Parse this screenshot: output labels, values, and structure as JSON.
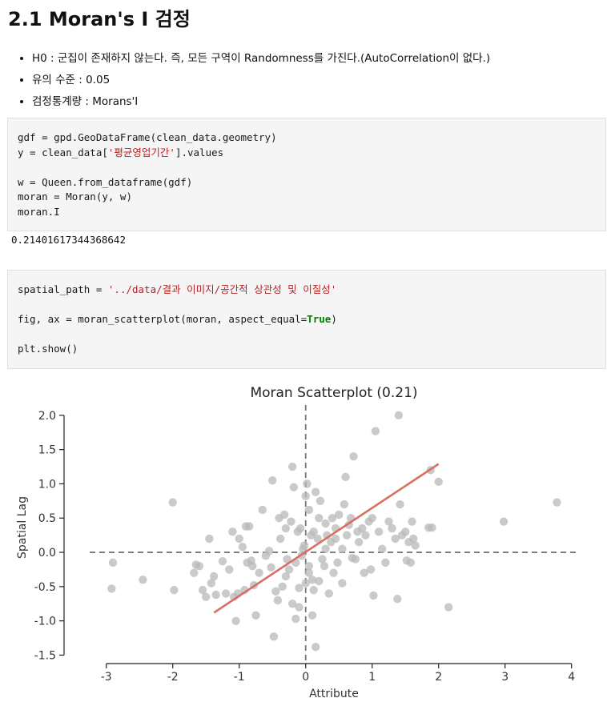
{
  "heading": "2.1 Moran's I 검정",
  "bullets": [
    "H0 : 군집이 존재하지 않는다. 즉, 모든 구역이 Randomness를 가진다.(AutoCorrelation이 없다.)",
    "유의 수준 : 0.05",
    "검정통계량 : Morans'I"
  ],
  "cell1": {
    "l1_a": "gdf = gpd.GeoDataFrame(clean_data.geometry)",
    "l2_a": "y = clean_data[",
    "l2_str": "'평균영업기간'",
    "l2_b": "].values",
    "l4_a": "w = Queen.from_dataframe(gdf)",
    "l5_a": "moran = Moran(y, w)",
    "l6_a": "moran.I"
  },
  "output1": "0.21401617344368642",
  "cell2": {
    "l1_a": "spatial_path = ",
    "l1_str": "'../data/결과 이미지/공간적 상관성 및 이질성'",
    "l3_a": "fig, ax = moran_scatterplot(moran, aspect_equal=",
    "l3_kw": "True",
    "l3_b": ")",
    "l5_a": "plt.show()"
  },
  "chart_data": {
    "type": "scatter",
    "title": "Moran Scatterplot (0.21)",
    "xlabel": "Attribute",
    "ylabel": "Spatial Lag",
    "xlim": [
      -3.25,
      4.1
    ],
    "ylim": [
      -1.6,
      2.15
    ],
    "xticks": [
      -3,
      -2,
      -1,
      0,
      1,
      2,
      3,
      4
    ],
    "yticks": [
      -1.5,
      -1.0,
      -0.5,
      0.0,
      0.5,
      1.0,
      1.5,
      2.0
    ],
    "ytick_labels": [
      "-1.5",
      "-1.0",
      "-0.5",
      "0.0",
      "0.5",
      "1.0",
      "1.5",
      "2.0"
    ],
    "grid": false,
    "point_color": "#b8b8b8",
    "fit_color": "#d6705f",
    "refline_color": "#777777",
    "fit_line": [
      [
        -1.38,
        -0.88
      ],
      [
        2.0,
        1.29
      ]
    ],
    "points": [
      [
        -2.9,
        -0.15
      ],
      [
        -2.92,
        -0.53
      ],
      [
        -2.45,
        -0.4
      ],
      [
        -2.0,
        0.73
      ],
      [
        -1.98,
        -0.55
      ],
      [
        -1.65,
        -0.18
      ],
      [
        -1.68,
        -0.3
      ],
      [
        -1.6,
        -0.2
      ],
      [
        -1.55,
        -0.55
      ],
      [
        -1.5,
        -0.65
      ],
      [
        -1.45,
        0.2
      ],
      [
        -1.42,
        -0.45
      ],
      [
        -1.38,
        -0.35
      ],
      [
        -1.35,
        -0.62
      ],
      [
        -1.25,
        -0.13
      ],
      [
        -1.2,
        -0.6
      ],
      [
        -1.15,
        -0.25
      ],
      [
        -1.1,
        0.3
      ],
      [
        -1.08,
        -0.65
      ],
      [
        -1.05,
        -1.0
      ],
      [
        -1.02,
        -0.6
      ],
      [
        -1.0,
        0.2
      ],
      [
        -0.95,
        0.08
      ],
      [
        -0.92,
        -0.55
      ],
      [
        -0.9,
        0.38
      ],
      [
        -0.88,
        -0.15
      ],
      [
        -0.85,
        0.38
      ],
      [
        -0.82,
        -0.12
      ],
      [
        -0.8,
        -0.2
      ],
      [
        -0.78,
        -0.48
      ],
      [
        -0.75,
        -0.92
      ],
      [
        -0.7,
        -0.3
      ],
      [
        -0.65,
        0.62
      ],
      [
        -0.6,
        -0.05
      ],
      [
        -0.55,
        0.02
      ],
      [
        -0.52,
        -0.22
      ],
      [
        -0.5,
        1.05
      ],
      [
        -0.48,
        -1.23
      ],
      [
        -0.45,
        -0.57
      ],
      [
        -0.42,
        -0.7
      ],
      [
        -0.4,
        0.5
      ],
      [
        -0.38,
        0.2
      ],
      [
        -0.35,
        -0.5
      ],
      [
        -0.32,
        0.55
      ],
      [
        -0.3,
        0.35
      ],
      [
        -0.28,
        -0.1
      ],
      [
        -0.25,
        -0.25
      ],
      [
        -0.22,
        0.45
      ],
      [
        -0.2,
        1.25
      ],
      [
        -0.18,
        0.95
      ],
      [
        -0.15,
        -0.15
      ],
      [
        -0.12,
        0.3
      ],
      [
        -0.1,
        -0.52
      ],
      [
        -0.08,
        0.35
      ],
      [
        -0.06,
        -0.05
      ],
      [
        -0.04,
        0.05
      ],
      [
        -0.02,
        0.1
      ],
      [
        0.0,
        0.82
      ],
      [
        0.02,
        1.0
      ],
      [
        0.05,
        0.62
      ],
      [
        0.05,
        -0.3
      ],
      [
        0.08,
        0.25
      ],
      [
        0.1,
        -0.4
      ],
      [
        0.12,
        -0.55
      ],
      [
        0.15,
        0.88
      ],
      [
        0.18,
        0.2
      ],
      [
        0.2,
        0.5
      ],
      [
        0.22,
        0.75
      ],
      [
        0.25,
        -0.1
      ],
      [
        0.28,
        -0.2
      ],
      [
        0.3,
        0.42
      ],
      [
        0.32,
        0.25
      ],
      [
        0.35,
        -0.6
      ],
      [
        0.38,
        0.15
      ],
      [
        0.4,
        0.5
      ],
      [
        0.42,
        -0.3
      ],
      [
        0.45,
        0.2
      ],
      [
        0.48,
        -0.15
      ],
      [
        0.5,
        0.55
      ],
      [
        0.55,
        -0.45
      ],
      [
        0.58,
        0.7
      ],
      [
        0.6,
        1.1
      ],
      [
        0.62,
        0.25
      ],
      [
        0.65,
        0.4
      ],
      [
        0.68,
        0.5
      ],
      [
        0.7,
        -0.08
      ],
      [
        0.72,
        1.4
      ],
      [
        0.75,
        -0.1
      ],
      [
        0.78,
        0.3
      ],
      [
        0.8,
        0.15
      ],
      [
        0.85,
        0.35
      ],
      [
        0.88,
        -0.3
      ],
      [
        0.9,
        0.25
      ],
      [
        0.95,
        0.45
      ],
      [
        0.98,
        -0.25
      ],
      [
        1.0,
        0.5
      ],
      [
        1.02,
        -0.63
      ],
      [
        1.05,
        1.77
      ],
      [
        1.1,
        0.3
      ],
      [
        1.15,
        0.05
      ],
      [
        1.2,
        -0.15
      ],
      [
        1.25,
        0.45
      ],
      [
        1.3,
        0.35
      ],
      [
        1.35,
        0.2
      ],
      [
        1.38,
        -0.68
      ],
      [
        1.4,
        2.0
      ],
      [
        1.42,
        0.7
      ],
      [
        1.45,
        0.25
      ],
      [
        1.5,
        0.3
      ],
      [
        1.52,
        -0.12
      ],
      [
        1.55,
        0.15
      ],
      [
        1.58,
        -0.15
      ],
      [
        1.6,
        0.45
      ],
      [
        1.62,
        0.2
      ],
      [
        1.65,
        0.1
      ],
      [
        1.85,
        0.36
      ],
      [
        1.88,
        1.2
      ],
      [
        1.9,
        0.36
      ],
      [
        2.0,
        1.03
      ],
      [
        2.15,
        -0.8
      ],
      [
        2.98,
        0.45
      ],
      [
        3.78,
        0.73
      ],
      [
        0.15,
        -1.38
      ],
      [
        -0.15,
        -0.97
      ],
      [
        0.1,
        -0.92
      ],
      [
        -0.2,
        -0.75
      ],
      [
        0.0,
        -0.45
      ],
      [
        0.05,
        -0.2
      ],
      [
        0.2,
        -0.42
      ],
      [
        -0.1,
        -0.8
      ],
      [
        0.3,
        0.05
      ],
      [
        -0.3,
        -0.35
      ],
      [
        0.12,
        0.3
      ],
      [
        0.45,
        0.35
      ],
      [
        0.55,
        0.05
      ]
    ]
  }
}
